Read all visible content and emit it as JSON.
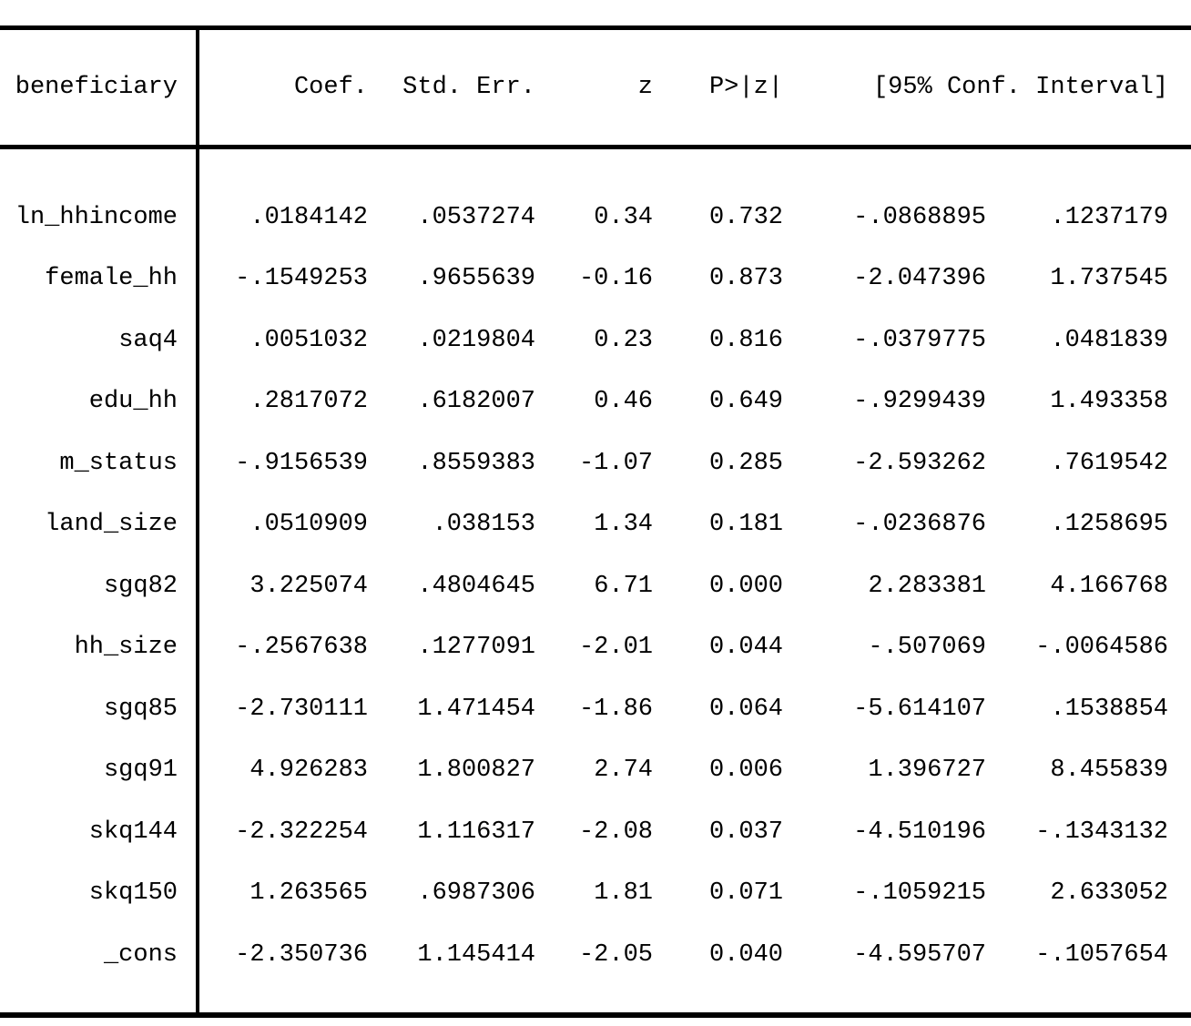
{
  "colors": {
    "text": "#000000",
    "background": "#ffffff",
    "rule": "#000000"
  },
  "table": {
    "header": {
      "variable": "beneficiary",
      "coef": "Coef.",
      "std_err": "Std. Err.",
      "z": "z",
      "p": "P>|z|",
      "ci": "[95% Conf. Interval]"
    },
    "rows": [
      {
        "variable": "ln_hhincome",
        "coef": ".0184142",
        "std_err": ".0537274",
        "z": "0.34",
        "p": "0.732",
        "ci_low": "-.0868895",
        "ci_high": ".1237179"
      },
      {
        "variable": "female_hh",
        "coef": "-.1549253",
        "std_err": ".9655639",
        "z": "-0.16",
        "p": "0.873",
        "ci_low": "-2.047396",
        "ci_high": "1.737545"
      },
      {
        "variable": "saq4",
        "coef": ".0051032",
        "std_err": ".0219804",
        "z": "0.23",
        "p": "0.816",
        "ci_low": "-.0379775",
        "ci_high": ".0481839"
      },
      {
        "variable": "edu_hh",
        "coef": ".2817072",
        "std_err": ".6182007",
        "z": "0.46",
        "p": "0.649",
        "ci_low": "-.9299439",
        "ci_high": "1.493358"
      },
      {
        "variable": "m_status",
        "coef": "-.9156539",
        "std_err": ".8559383",
        "z": "-1.07",
        "p": "0.285",
        "ci_low": "-2.593262",
        "ci_high": ".7619542"
      },
      {
        "variable": "land_size",
        "coef": ".0510909",
        "std_err": ".038153",
        "z": "1.34",
        "p": "0.181",
        "ci_low": "-.0236876",
        "ci_high": ".1258695"
      },
      {
        "variable": "sgq82",
        "coef": "3.225074",
        "std_err": ".4804645",
        "z": "6.71",
        "p": "0.000",
        "ci_low": "2.283381",
        "ci_high": "4.166768"
      },
      {
        "variable": "hh_size",
        "coef": "-.2567638",
        "std_err": ".1277091",
        "z": "-2.01",
        "p": "0.044",
        "ci_low": "-.507069",
        "ci_high": "-.0064586"
      },
      {
        "variable": "sgq85",
        "coef": "-2.730111",
        "std_err": "1.471454",
        "z": "-1.86",
        "p": "0.064",
        "ci_low": "-5.614107",
        "ci_high": ".1538854"
      },
      {
        "variable": "sgq91",
        "coef": "4.926283",
        "std_err": "1.800827",
        "z": "2.74",
        "p": "0.006",
        "ci_low": "1.396727",
        "ci_high": "8.455839"
      },
      {
        "variable": "skq144",
        "coef": "-2.322254",
        "std_err": "1.116317",
        "z": "-2.08",
        "p": "0.037",
        "ci_low": "-4.510196",
        "ci_high": "-.1343132"
      },
      {
        "variable": "skq150",
        "coef": "1.263565",
        "std_err": ".6987306",
        "z": "1.81",
        "p": "0.071",
        "ci_low": "-.1059215",
        "ci_high": "2.633052"
      },
      {
        "variable": "_cons",
        "coef": "-2.350736",
        "std_err": "1.145414",
        "z": "-2.05",
        "p": "0.040",
        "ci_low": "-4.595707",
        "ci_high": "-.1057654"
      }
    ]
  }
}
